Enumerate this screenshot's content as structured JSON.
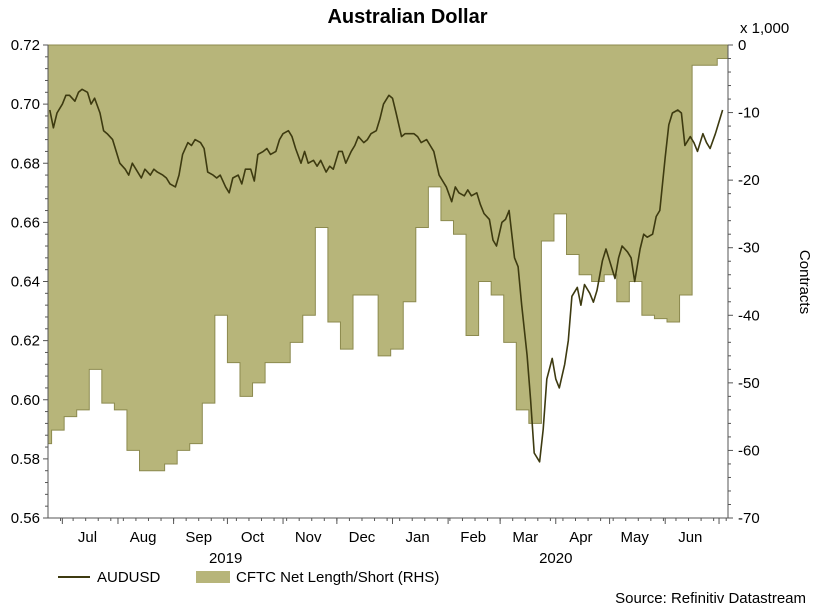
{
  "chart_data": {
    "type": "line",
    "title": "Australian Dollar",
    "right_axis_unit": "x 1,000",
    "right_axis_label": "Contracts",
    "source": "Source: Refinitiv Datastream",
    "colors": {
      "line": "#3d3a10",
      "area": "#b7b57a",
      "area_border": "#8c8a4f",
      "axis": "#555555"
    },
    "left_axis": {
      "range": [
        0.56,
        0.72
      ],
      "ticks": [
        "0.56",
        "0.58",
        "0.60",
        "0.62",
        "0.64",
        "0.66",
        "0.68",
        "0.70",
        "0.72"
      ]
    },
    "right_axis": {
      "range": [
        -70,
        0
      ],
      "ticks": [
        "-70",
        "-60",
        "-50",
        "-40",
        "-30",
        "-20",
        "-10",
        "0"
      ]
    },
    "x_axis": {
      "range": [
        "2019-06-23",
        "2020-07-06"
      ],
      "months": [
        {
          "label": "Jul",
          "date": "2019-07-15"
        },
        {
          "label": "Aug",
          "date": "2019-08-15"
        },
        {
          "label": "Sep",
          "date": "2019-09-15"
        },
        {
          "label": "Oct",
          "date": "2019-10-15"
        },
        {
          "label": "Nov",
          "date": "2019-11-15"
        },
        {
          "label": "Dec",
          "date": "2019-12-15"
        },
        {
          "label": "Jan",
          "date": "2020-01-15"
        },
        {
          "label": "Feb",
          "date": "2020-02-15"
        },
        {
          "label": "Mar",
          "date": "2020-03-15"
        },
        {
          "label": "Apr",
          "date": "2020-04-15"
        },
        {
          "label": "May",
          "date": "2020-05-15"
        },
        {
          "label": "Jun",
          "date": "2020-06-15"
        }
      ],
      "month_boundaries": [
        "2019-07-01",
        "2019-08-01",
        "2019-09-01",
        "2019-10-01",
        "2019-11-01",
        "2019-12-01",
        "2020-01-01",
        "2020-02-01",
        "2020-03-01",
        "2020-04-01",
        "2020-05-01",
        "2020-06-01",
        "2020-07-01"
      ],
      "years": [
        {
          "label": "2019",
          "date": "2019-09-30"
        },
        {
          "label": "2020",
          "date": "2020-04-01"
        }
      ]
    },
    "legend": [
      {
        "name": "AUDUSD",
        "kind": "line"
      },
      {
        "name": "CFTC Net Length/Short (RHS)",
        "kind": "area"
      }
    ],
    "series": [
      {
        "name": "AUDUSD",
        "axis": "left",
        "points": [
          [
            "2019-06-24",
            0.698
          ],
          [
            "2019-06-26",
            0.692
          ],
          [
            "2019-06-28",
            0.697
          ],
          [
            "2019-07-01",
            0.7
          ],
          [
            "2019-07-03",
            0.703
          ],
          [
            "2019-07-05",
            0.703
          ],
          [
            "2019-07-08",
            0.701
          ],
          [
            "2019-07-10",
            0.704
          ],
          [
            "2019-07-12",
            0.705
          ],
          [
            "2019-07-15",
            0.704
          ],
          [
            "2019-07-17",
            0.7
          ],
          [
            "2019-07-19",
            0.702
          ],
          [
            "2019-07-22",
            0.697
          ],
          [
            "2019-07-24",
            0.691
          ],
          [
            "2019-07-26",
            0.69
          ],
          [
            "2019-07-29",
            0.688
          ],
          [
            "2019-07-31",
            0.684
          ],
          [
            "2019-08-02",
            0.68
          ],
          [
            "2019-08-05",
            0.678
          ],
          [
            "2019-08-07",
            0.676
          ],
          [
            "2019-08-09",
            0.68
          ],
          [
            "2019-08-12",
            0.677
          ],
          [
            "2019-08-14",
            0.675
          ],
          [
            "2019-08-16",
            0.678
          ],
          [
            "2019-08-19",
            0.676
          ],
          [
            "2019-08-21",
            0.678
          ],
          [
            "2019-08-23",
            0.677
          ],
          [
            "2019-08-26",
            0.676
          ],
          [
            "2019-08-28",
            0.675
          ],
          [
            "2019-08-30",
            0.673
          ],
          [
            "2019-09-02",
            0.672
          ],
          [
            "2019-09-04",
            0.676
          ],
          [
            "2019-09-06",
            0.683
          ],
          [
            "2019-09-09",
            0.687
          ],
          [
            "2019-09-11",
            0.686
          ],
          [
            "2019-09-13",
            0.688
          ],
          [
            "2019-09-16",
            0.687
          ],
          [
            "2019-09-18",
            0.685
          ],
          [
            "2019-09-20",
            0.677
          ],
          [
            "2019-09-23",
            0.676
          ],
          [
            "2019-09-25",
            0.675
          ],
          [
            "2019-09-27",
            0.676
          ],
          [
            "2019-09-30",
            0.672
          ],
          [
            "2019-10-02",
            0.67
          ],
          [
            "2019-10-04",
            0.675
          ],
          [
            "2019-10-07",
            0.676
          ],
          [
            "2019-10-09",
            0.673
          ],
          [
            "2019-10-11",
            0.678
          ],
          [
            "2019-10-14",
            0.678
          ],
          [
            "2019-10-16",
            0.674
          ],
          [
            "2019-10-18",
            0.683
          ],
          [
            "2019-10-21",
            0.684
          ],
          [
            "2019-10-23",
            0.685
          ],
          [
            "2019-10-25",
            0.683
          ],
          [
            "2019-10-28",
            0.684
          ],
          [
            "2019-10-30",
            0.688
          ],
          [
            "2019-11-01",
            0.69
          ],
          [
            "2019-11-04",
            0.691
          ],
          [
            "2019-11-06",
            0.689
          ],
          [
            "2019-11-08",
            0.685
          ],
          [
            "2019-11-11",
            0.68
          ],
          [
            "2019-11-13",
            0.684
          ],
          [
            "2019-11-15",
            0.68
          ],
          [
            "2019-11-18",
            0.681
          ],
          [
            "2019-11-20",
            0.679
          ],
          [
            "2019-11-22",
            0.681
          ],
          [
            "2019-11-25",
            0.677
          ],
          [
            "2019-11-27",
            0.679
          ],
          [
            "2019-11-29",
            0.678
          ],
          [
            "2019-12-02",
            0.684
          ],
          [
            "2019-12-04",
            0.684
          ],
          [
            "2019-12-06",
            0.68
          ],
          [
            "2019-12-09",
            0.684
          ],
          [
            "2019-12-11",
            0.686
          ],
          [
            "2019-12-13",
            0.689
          ],
          [
            "2019-12-16",
            0.687
          ],
          [
            "2019-12-18",
            0.688
          ],
          [
            "2019-12-20",
            0.69
          ],
          [
            "2019-12-23",
            0.691
          ],
          [
            "2019-12-25",
            0.695
          ],
          [
            "2019-12-27",
            0.7
          ],
          [
            "2019-12-30",
            0.703
          ],
          [
            "2020-01-01",
            0.702
          ],
          [
            "2020-01-03",
            0.697
          ],
          [
            "2020-01-06",
            0.689
          ],
          [
            "2020-01-08",
            0.69
          ],
          [
            "2020-01-10",
            0.69
          ],
          [
            "2020-01-13",
            0.69
          ],
          [
            "2020-01-15",
            0.689
          ],
          [
            "2020-01-17",
            0.687
          ],
          [
            "2020-01-20",
            0.688
          ],
          [
            "2020-01-22",
            0.686
          ],
          [
            "2020-01-24",
            0.684
          ],
          [
            "2020-01-27",
            0.676
          ],
          [
            "2020-01-29",
            0.674
          ],
          [
            "2020-01-31",
            0.672
          ],
          [
            "2020-02-03",
            0.667
          ],
          [
            "2020-02-05",
            0.672
          ],
          [
            "2020-02-07",
            0.67
          ],
          [
            "2020-02-10",
            0.669
          ],
          [
            "2020-02-12",
            0.671
          ],
          [
            "2020-02-14",
            0.669
          ],
          [
            "2020-02-17",
            0.67
          ],
          [
            "2020-02-19",
            0.666
          ],
          [
            "2020-02-21",
            0.663
          ],
          [
            "2020-02-24",
            0.661
          ],
          [
            "2020-02-26",
            0.654
          ],
          [
            "2020-02-28",
            0.652
          ],
          [
            "2020-03-02",
            0.66
          ],
          [
            "2020-03-04",
            0.661
          ],
          [
            "2020-03-06",
            0.664
          ],
          [
            "2020-03-09",
            0.648
          ],
          [
            "2020-03-11",
            0.645
          ],
          [
            "2020-03-13",
            0.632
          ],
          [
            "2020-03-16",
            0.615
          ],
          [
            "2020-03-18",
            0.6
          ],
          [
            "2020-03-20",
            0.582
          ],
          [
            "2020-03-23",
            0.579
          ],
          [
            "2020-03-25",
            0.59
          ],
          [
            "2020-03-27",
            0.607
          ],
          [
            "2020-03-30",
            0.614
          ],
          [
            "2020-04-01",
            0.607
          ],
          [
            "2020-04-03",
            0.604
          ],
          [
            "2020-04-06",
            0.612
          ],
          [
            "2020-04-08",
            0.62
          ],
          [
            "2020-04-10",
            0.635
          ],
          [
            "2020-04-13",
            0.638
          ],
          [
            "2020-04-15",
            0.632
          ],
          [
            "2020-04-17",
            0.639
          ],
          [
            "2020-04-20",
            0.636
          ],
          [
            "2020-04-22",
            0.633
          ],
          [
            "2020-04-24",
            0.637
          ],
          [
            "2020-04-27",
            0.647
          ],
          [
            "2020-04-29",
            0.651
          ],
          [
            "2020-05-01",
            0.647
          ],
          [
            "2020-05-04",
            0.641
          ],
          [
            "2020-05-06",
            0.648
          ],
          [
            "2020-05-08",
            0.652
          ],
          [
            "2020-05-11",
            0.65
          ],
          [
            "2020-05-13",
            0.648
          ],
          [
            "2020-05-15",
            0.64
          ],
          [
            "2020-05-18",
            0.651
          ],
          [
            "2020-05-20",
            0.656
          ],
          [
            "2020-05-22",
            0.655
          ],
          [
            "2020-05-25",
            0.656
          ],
          [
            "2020-05-27",
            0.662
          ],
          [
            "2020-05-29",
            0.664
          ],
          [
            "2020-06-01",
            0.682
          ],
          [
            "2020-06-03",
            0.693
          ],
          [
            "2020-06-05",
            0.697
          ],
          [
            "2020-06-08",
            0.698
          ],
          [
            "2020-06-10",
            0.697
          ],
          [
            "2020-06-12",
            0.686
          ],
          [
            "2020-06-15",
            0.689
          ],
          [
            "2020-06-17",
            0.687
          ],
          [
            "2020-06-19",
            0.684
          ],
          [
            "2020-06-22",
            0.69
          ],
          [
            "2020-06-24",
            0.687
          ],
          [
            "2020-06-26",
            0.685
          ],
          [
            "2020-06-29",
            0.69
          ],
          [
            "2020-07-01",
            0.694
          ],
          [
            "2020-07-03",
            0.698
          ]
        ]
      },
      {
        "name": "CFTC Net Length/Short (RHS)",
        "axis": "right",
        "step": true,
        "points": [
          [
            "2019-06-23",
            -59
          ],
          [
            "2019-06-25",
            -57
          ],
          [
            "2019-07-02",
            -55
          ],
          [
            "2019-07-09",
            -54
          ],
          [
            "2019-07-16",
            -48
          ],
          [
            "2019-07-23",
            -53
          ],
          [
            "2019-07-30",
            -54
          ],
          [
            "2019-08-06",
            -60
          ],
          [
            "2019-08-13",
            -63
          ],
          [
            "2019-08-20",
            -63
          ],
          [
            "2019-08-27",
            -62
          ],
          [
            "2019-09-03",
            -60
          ],
          [
            "2019-09-10",
            -59
          ],
          [
            "2019-09-17",
            -53
          ],
          [
            "2019-09-24",
            -40
          ],
          [
            "2019-10-01",
            -47
          ],
          [
            "2019-10-08",
            -52
          ],
          [
            "2019-10-15",
            -50
          ],
          [
            "2019-10-22",
            -47
          ],
          [
            "2019-10-29",
            -47
          ],
          [
            "2019-11-05",
            -44
          ],
          [
            "2019-11-12",
            -40
          ],
          [
            "2019-11-19",
            -27
          ],
          [
            "2019-11-26",
            -41
          ],
          [
            "2019-12-03",
            -45
          ],
          [
            "2019-12-10",
            -37
          ],
          [
            "2019-12-17",
            -37
          ],
          [
            "2019-12-24",
            -46
          ],
          [
            "2019-12-31",
            -45
          ],
          [
            "2020-01-07",
            -38
          ],
          [
            "2020-01-14",
            -27
          ],
          [
            "2020-01-21",
            -21
          ],
          [
            "2020-01-28",
            -26
          ],
          [
            "2020-02-04",
            -28
          ],
          [
            "2020-02-11",
            -43
          ],
          [
            "2020-02-18",
            -35
          ],
          [
            "2020-02-25",
            -37
          ],
          [
            "2020-03-03",
            -44
          ],
          [
            "2020-03-10",
            -54
          ],
          [
            "2020-03-17",
            -56
          ],
          [
            "2020-03-24",
            -29
          ],
          [
            "2020-03-31",
            -25
          ],
          [
            "2020-04-07",
            -31
          ],
          [
            "2020-04-14",
            -34
          ],
          [
            "2020-04-21",
            -35
          ],
          [
            "2020-04-28",
            -34
          ],
          [
            "2020-05-05",
            -38
          ],
          [
            "2020-05-12",
            -35
          ],
          [
            "2020-05-19",
            -40
          ],
          [
            "2020-05-26",
            -40.5
          ],
          [
            "2020-06-02",
            -41
          ],
          [
            "2020-06-09",
            -37
          ],
          [
            "2020-06-16",
            -3
          ],
          [
            "2020-06-23",
            -3
          ],
          [
            "2020-06-30",
            -2
          ],
          [
            "2020-07-06",
            -2
          ]
        ]
      }
    ]
  }
}
